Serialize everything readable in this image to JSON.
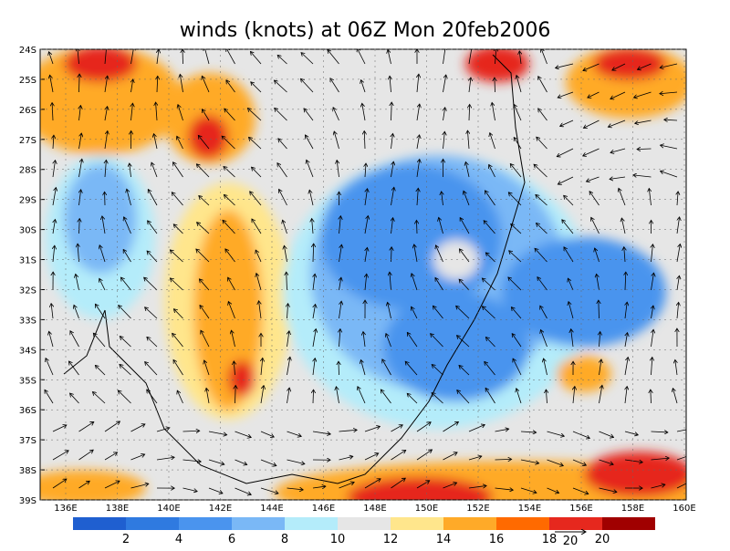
{
  "title": "winds (knots) at 06Z Mon 20feb2006",
  "lat_labels": [
    "24S",
    "25S",
    "26S",
    "27S",
    "28S",
    "29S",
    "30S",
    "31S",
    "32S",
    "33S",
    "34S",
    "35S",
    "36S",
    "37S",
    "38S",
    "39S"
  ],
  "lon_labels": [
    "136E",
    "138E",
    "140E",
    "142E",
    "144E",
    "146E",
    "148E",
    "150E",
    "152E",
    "154E",
    "156E",
    "158E",
    "160E"
  ],
  "colorbar": {
    "colors": [
      "#1f5fd0",
      "#2f7ae0",
      "#4a94ee",
      "#7ab8f6",
      "#b4ecfa",
      "#e6e6e6",
      "#ffe68c",
      "#ffaa28",
      "#ff6a00",
      "#e6281e",
      "#a00000"
    ],
    "ticks": [
      2,
      4,
      6,
      8,
      10,
      12,
      14,
      16,
      18,
      20
    ]
  },
  "reference_vector": {
    "label": "20"
  }
}
